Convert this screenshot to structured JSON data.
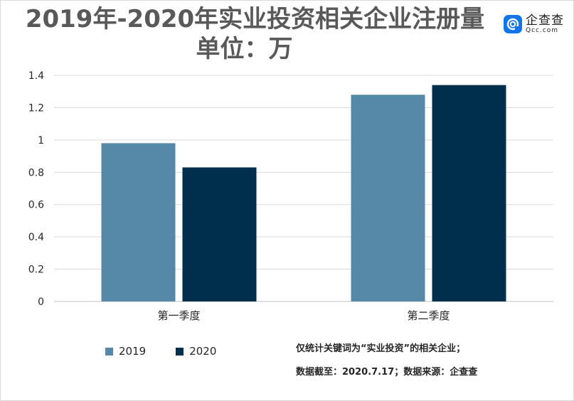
{
  "title_line1": "2019年-2020年实业投资相关企业注册量",
  "title_line2": "单位：万",
  "logo": {
    "name": "企查查",
    "domain": "Qcc.com",
    "icon": "qcc-logo-icon",
    "color": "#1274e8"
  },
  "notes": [
    "仅统计关键词为“实业投资”的相关企业；",
    "数据截至：2020.7.17；数据来源：企查查"
  ],
  "chart_data": {
    "type": "bar",
    "categories": [
      "第一季度",
      "第二季度"
    ],
    "series": [
      {
        "name": "2019",
        "values": [
          0.98,
          1.28
        ],
        "color": "#5689a8"
      },
      {
        "name": "2020",
        "values": [
          0.83,
          1.34
        ],
        "color": "#002e4d"
      }
    ],
    "yticks": [
      "0",
      "0.2",
      "0.4",
      "0.6",
      "0.8",
      "1",
      "1.2",
      "1.4"
    ],
    "ylim": [
      0,
      1.4
    ],
    "grid": true,
    "legend_position": "bottom-left"
  }
}
